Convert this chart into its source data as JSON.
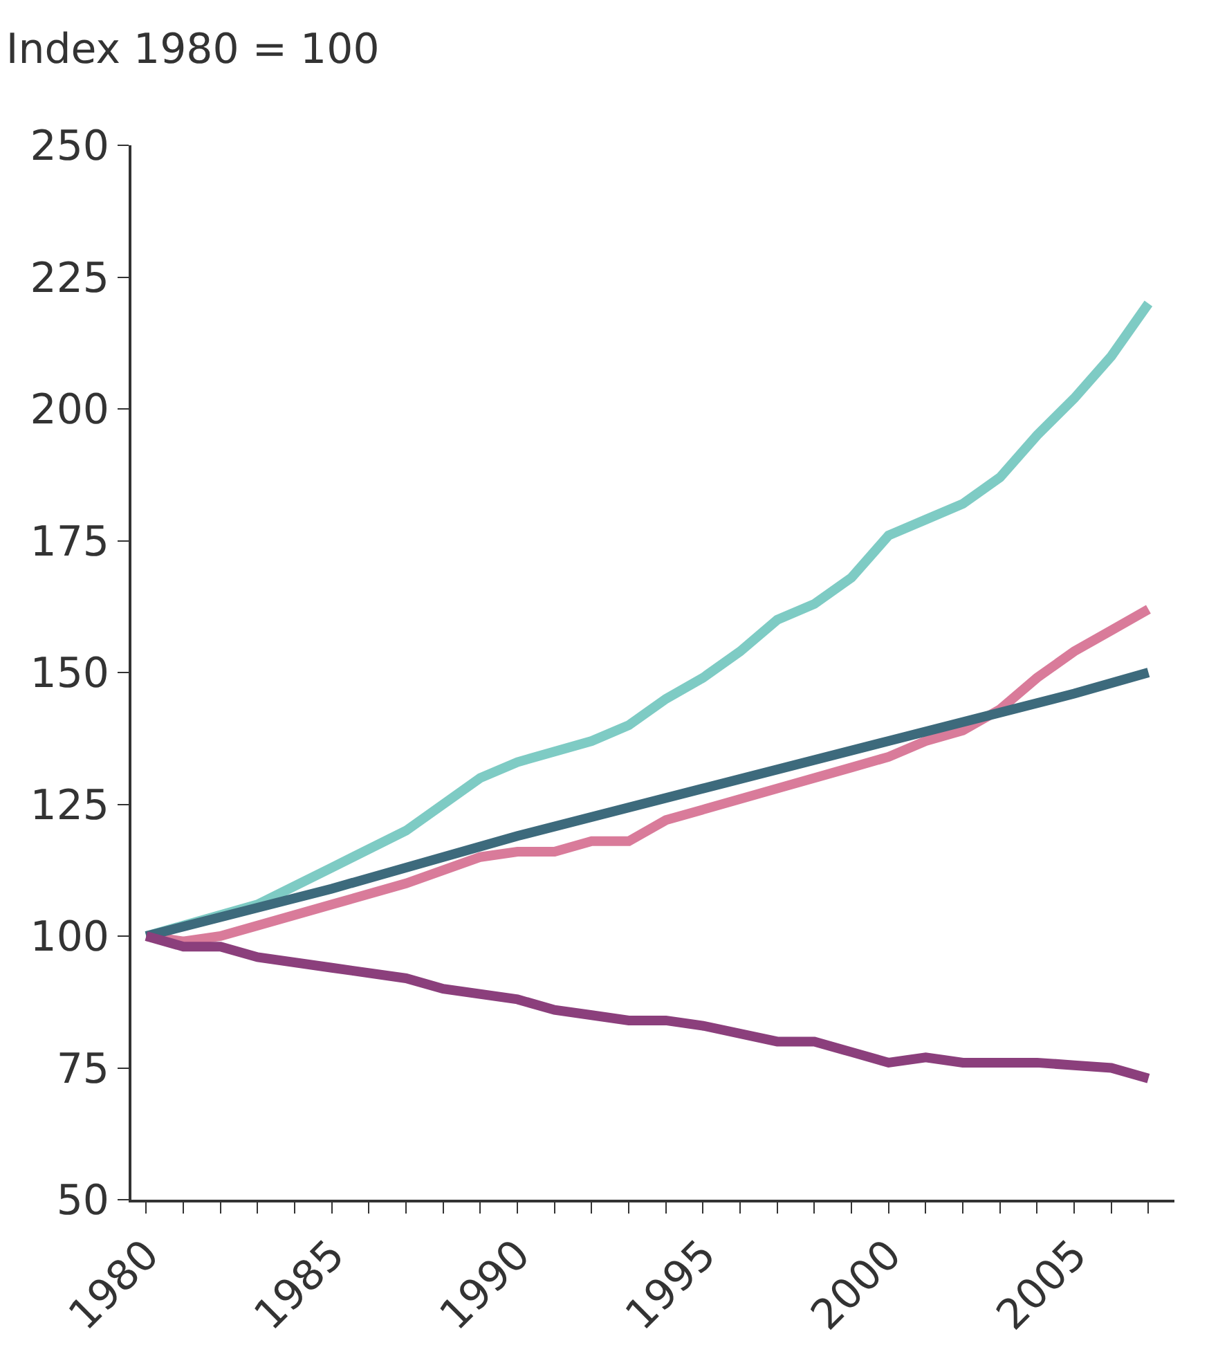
{
  "chart_data": {
    "type": "line",
    "title": "Index 1980 = 100",
    "xlim": [
      1979.6,
      2007.7
    ],
    "xticks": [
      1980,
      {
        "value": 1981,
        "label": null
      },
      {
        "value": 1982,
        "label": null
      },
      {
        "value": 1983,
        "label": null
      },
      {
        "value": 1984,
        "label": null
      },
      1985,
      {
        "value": 1986,
        "label": null
      },
      {
        "value": 1987,
        "label": null
      },
      {
        "value": 1988,
        "label": null
      },
      {
        "value": 1989,
        "label": null
      },
      1990,
      {
        "value": 1991,
        "label": null
      },
      {
        "value": 1992,
        "label": null
      },
      {
        "value": 1993,
        "label": null
      },
      {
        "value": 1994,
        "label": null
      },
      1995,
      {
        "value": 1996,
        "label": null
      },
      {
        "value": 1997,
        "label": null
      },
      {
        "value": 1998,
        "label": null
      },
      {
        "value": 1999,
        "label": null
      },
      2000,
      {
        "value": 2001,
        "label": null
      },
      {
        "value": 2002,
        "label": null
      },
      {
        "value": 2003,
        "label": null
      },
      {
        "value": 2004,
        "label": null
      },
      2005,
      {
        "value": 2006,
        "label": null
      },
      {
        "value": 2007,
        "label": null
      }
    ],
    "ylim": [
      50,
      250
    ],
    "yticks": [
      50,
      75,
      100,
      125,
      150,
      175,
      200,
      225,
      250
    ],
    "grid": false,
    "marker": "none",
    "line_style": "solid",
    "series": [
      {
        "color": "#7ecbc4",
        "x": [
          1980,
          1981,
          1983,
          1985,
          1987,
          1989,
          1990,
          1991,
          1992,
          1993,
          1994,
          1995,
          1996,
          1997,
          1998,
          1999,
          2000,
          2001,
          2002,
          2003,
          2004,
          2005,
          2006,
          2007
        ],
        "values": [
          100,
          102,
          106,
          113,
          120,
          130,
          133,
          135,
          137,
          140,
          145,
          149,
          154,
          160,
          163,
          168,
          176,
          179,
          182,
          187,
          195,
          202,
          210,
          220
        ]
      },
      {
        "color": "#d97b9a",
        "x": [
          1980,
          1981,
          1982,
          1983,
          1985,
          1987,
          1989,
          1990,
          1991,
          1992,
          1993,
          1994,
          1995,
          1997,
          1999,
          2000,
          2001,
          2002,
          2003,
          2004,
          2005,
          2006,
          2007
        ],
        "values": [
          100,
          99,
          100,
          102,
          106,
          110,
          115,
          116,
          116,
          118,
          118,
          122,
          124,
          128,
          132,
          134,
          137,
          139,
          143,
          149,
          154,
          158,
          162
        ]
      },
      {
        "color": "#3d6a7c",
        "x": [
          1980,
          1985,
          1990,
          1995,
          2000,
          2005,
          2007
        ],
        "values": [
          100,
          109,
          119,
          128,
          137,
          146,
          150
        ]
      },
      {
        "color": "#8b3f7c",
        "x": [
          1980,
          1981,
          1982,
          1983,
          1985,
          1987,
          1988,
          1990,
          1991,
          1992,
          1993,
          1994,
          1995,
          1997,
          1998,
          1999,
          2000,
          2001,
          2002,
          2003,
          2004,
          2005,
          2006,
          2007
        ],
        "values": [
          100,
          98,
          98,
          96,
          94,
          92,
          90,
          88,
          86,
          85,
          84,
          84,
          83,
          80,
          80,
          78,
          76,
          77,
          76,
          76,
          76,
          75.5,
          75,
          73
        ]
      }
    ]
  }
}
